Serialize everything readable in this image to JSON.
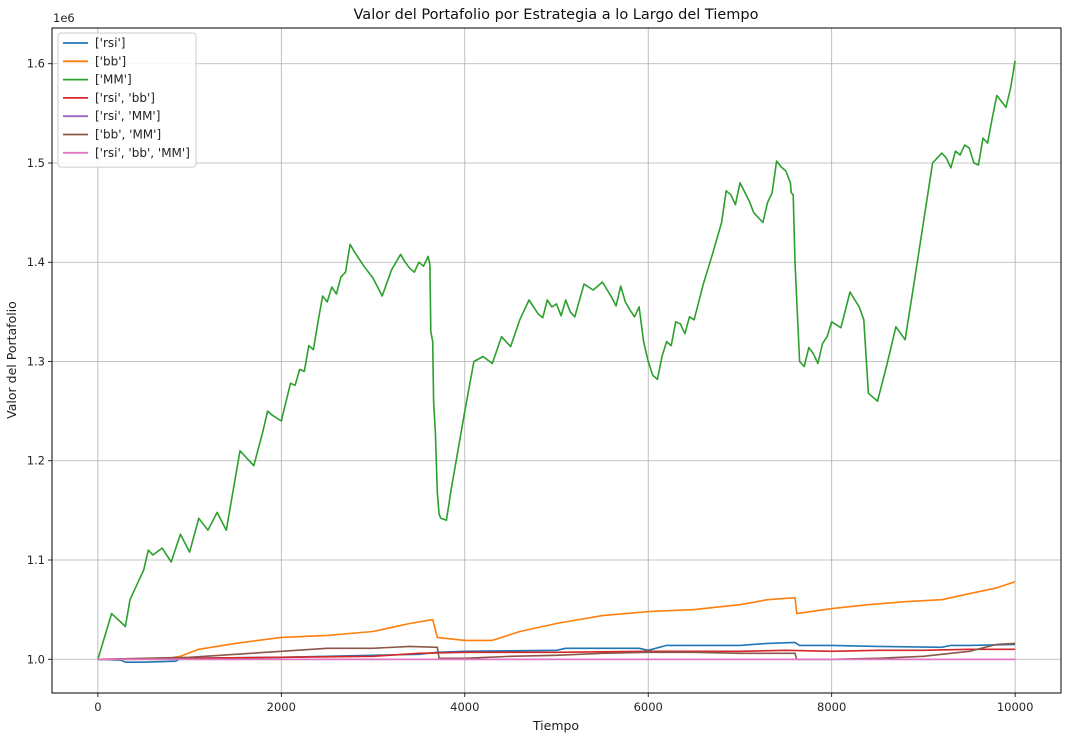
{
  "chart_data": {
    "type": "line",
    "title": "Valor del Portafolio por Estrategia a lo Largo del Tiempo",
    "xlabel": "Tiempo",
    "ylabel": "Valor del Portafolio",
    "y_offset_label": "1e6",
    "xlim": [
      -500,
      10500
    ],
    "ylim": [
      966000,
      1636000
    ],
    "x_ticks": [
      0,
      2000,
      4000,
      6000,
      8000,
      10000
    ],
    "x_tick_labels": [
      "0",
      "2000",
      "4000",
      "6000",
      "8000",
      "10000"
    ],
    "y_ticks": [
      1000000,
      1100000,
      1200000,
      1300000,
      1400000,
      1500000,
      1600000
    ],
    "y_tick_labels": [
      "1.0",
      "1.1",
      "1.2",
      "1.3",
      "1.4",
      "1.5",
      "1.6"
    ],
    "grid": true,
    "legend_position": "top-left",
    "series": [
      {
        "name": "['rsi']",
        "color": "#1f77b4",
        "x": [
          0,
          250,
          300,
          500,
          850,
          900,
          2000,
          3000,
          3500,
          3700,
          4000,
          5000,
          5100,
          5900,
          6000,
          6200,
          7000,
          7300,
          7600,
          7650,
          8000,
          8500,
          9200,
          9300,
          9500,
          10000
        ],
        "y": [
          1000000,
          999000,
          997000,
          997000,
          998000,
          1001000,
          1002000,
          1004000,
          1005000,
          1007000,
          1008000,
          1009000,
          1011000,
          1011000,
          1009000,
          1014000,
          1014000,
          1016000,
          1017000,
          1014000,
          1014000,
          1013000,
          1012000,
          1014000,
          1014000,
          1015000
        ]
      },
      {
        "name": "['bb']",
        "color": "#ff7f0e",
        "x": [
          0,
          700,
          900,
          1100,
          1500,
          2000,
          2500,
          3000,
          3400,
          3650,
          3700,
          4000,
          4300,
          4600,
          5000,
          5500,
          6000,
          6500,
          7000,
          7300,
          7600,
          7620,
          8000,
          8400,
          8800,
          9200,
          9500,
          9800,
          10000
        ],
        "y": [
          1000000,
          1000000,
          1003000,
          1010000,
          1016000,
          1022000,
          1024000,
          1028000,
          1036000,
          1040000,
          1022000,
          1019000,
          1019000,
          1028000,
          1036000,
          1044000,
          1048000,
          1050000,
          1055000,
          1060000,
          1062000,
          1046000,
          1051000,
          1055000,
          1058000,
          1060000,
          1066000,
          1072000,
          1078000
        ]
      },
      {
        "name": "['MM']",
        "color": "#2ca02c",
        "x": [
          0,
          150,
          300,
          350,
          500,
          550,
          600,
          700,
          800,
          900,
          1000,
          1100,
          1200,
          1300,
          1400,
          1550,
          1700,
          1800,
          1850,
          1900,
          2000,
          2100,
          2150,
          2200,
          2250,
          2300,
          2350,
          2400,
          2450,
          2500,
          2550,
          2600,
          2650,
          2700,
          2750,
          2800,
          2900,
          3000,
          3100,
          3200,
          3300,
          3350,
          3400,
          3450,
          3500,
          3550,
          3600,
          3620,
          3630,
          3650,
          3660,
          3680,
          3700,
          3720,
          3740,
          3800,
          3850,
          4000,
          4100,
          4200,
          4300,
          4400,
          4500,
          4600,
          4700,
          4800,
          4850,
          4900,
          4950,
          5000,
          5050,
          5100,
          5150,
          5200,
          5300,
          5400,
          5500,
          5600,
          5650,
          5700,
          5750,
          5800,
          5850,
          5900,
          5950,
          6000,
          6050,
          6100,
          6150,
          6200,
          6250,
          6300,
          6350,
          6400,
          6450,
          6500,
          6600,
          6700,
          6800,
          6850,
          6900,
          6950,
          7000,
          7100,
          7150,
          7200,
          7250,
          7300,
          7350,
          7400,
          7450,
          7500,
          7550,
          7560,
          7580,
          7600,
          7650,
          7700,
          7750,
          7800,
          7850,
          7900,
          7950,
          8000,
          8100,
          8200,
          8300,
          8350,
          8400,
          8500,
          8600,
          8700,
          8800,
          8900,
          9000,
          9100,
          9200,
          9250,
          9300,
          9350,
          9400,
          9450,
          9500,
          9550,
          9600,
          9650,
          9700,
          9750,
          9800,
          9850,
          9900,
          9950,
          10000
        ],
        "y": [
          1000000,
          1046000,
          1033000,
          1060000,
          1090000,
          1110000,
          1105000,
          1112000,
          1098000,
          1126000,
          1108000,
          1142000,
          1130000,
          1148000,
          1130000,
          1210000,
          1195000,
          1230000,
          1250000,
          1246000,
          1240000,
          1278000,
          1276000,
          1292000,
          1290000,
          1316000,
          1312000,
          1340000,
          1366000,
          1360000,
          1375000,
          1368000,
          1385000,
          1390000,
          1418000,
          1410000,
          1396000,
          1384000,
          1366000,
          1392000,
          1408000,
          1400000,
          1394000,
          1390000,
          1400000,
          1396000,
          1406000,
          1398000,
          1330000,
          1320000,
          1260000,
          1228000,
          1168000,
          1146000,
          1142000,
          1140000,
          1170000,
          1250000,
          1300000,
          1305000,
          1298000,
          1325000,
          1315000,
          1342000,
          1362000,
          1348000,
          1344000,
          1362000,
          1355000,
          1358000,
          1346000,
          1362000,
          1350000,
          1345000,
          1378000,
          1372000,
          1380000,
          1365000,
          1356000,
          1376000,
          1360000,
          1352000,
          1345000,
          1355000,
          1320000,
          1300000,
          1286000,
          1282000,
          1305000,
          1320000,
          1316000,
          1340000,
          1338000,
          1328000,
          1345000,
          1342000,
          1378000,
          1408000,
          1440000,
          1472000,
          1468000,
          1458000,
          1480000,
          1462000,
          1450000,
          1445000,
          1440000,
          1460000,
          1470000,
          1502000,
          1496000,
          1492000,
          1480000,
          1470000,
          1468000,
          1400000,
          1300000,
          1295000,
          1314000,
          1308000,
          1298000,
          1318000,
          1325000,
          1340000,
          1334000,
          1370000,
          1355000,
          1342000,
          1268000,
          1260000,
          1296000,
          1335000,
          1322000,
          1380000,
          1440000,
          1500000,
          1510000,
          1505000,
          1495000,
          1512000,
          1508000,
          1518000,
          1515000,
          1500000,
          1498000,
          1525000,
          1520000,
          1545000,
          1568000,
          1562000,
          1556000,
          1575000,
          1603000
        ]
      },
      {
        "name": "['rsi', 'bb']",
        "color": "#d62728",
        "x": [
          0,
          1000,
          2000,
          3000,
          3500,
          4000,
          5000,
          6000,
          6500,
          7000,
          7500,
          8000,
          8500,
          9000,
          9500,
          10000
        ],
        "y": [
          1000000,
          1001000,
          1002000,
          1003000,
          1006000,
          1007000,
          1007000,
          1008000,
          1008000,
          1008000,
          1009000,
          1008000,
          1009000,
          1009000,
          1010000,
          1010000
        ]
      },
      {
        "name": "['rsi', 'MM']",
        "color": "#9467bd",
        "x": [
          0,
          1000,
          2000,
          3000,
          4000,
          5000,
          6000,
          7000,
          8000,
          9000,
          10000
        ],
        "y": [
          1000000,
          1000000,
          1000000,
          1000000,
          1000000,
          1000000,
          1000000,
          1000000,
          1000000,
          1000000,
          1000000
        ]
      },
      {
        "name": "['bb', 'MM']",
        "color": "#8c564b",
        "x": [
          0,
          500,
          1000,
          1500,
          2000,
          2500,
          3000,
          3400,
          3700,
          3720,
          4000,
          4500,
          5000,
          5500,
          6000,
          6500,
          7000,
          7500,
          7600,
          7620,
          8000,
          8500,
          9000,
          9500,
          9800,
          10000
        ],
        "y": [
          1000000,
          1001000,
          1002000,
          1005000,
          1008000,
          1011000,
          1011000,
          1013000,
          1012000,
          1001000,
          1001000,
          1003000,
          1004000,
          1006000,
          1007000,
          1007000,
          1006000,
          1006000,
          1006000,
          1000000,
          1000000,
          1001000,
          1003000,
          1008000,
          1015000,
          1016000
        ]
      },
      {
        "name": "['rsi', 'bb', 'MM']",
        "color": "#e377c2",
        "x": [
          0,
          1000,
          2000,
          3000,
          4000,
          5000,
          6000,
          7000,
          8000,
          9000,
          10000
        ],
        "y": [
          1000000,
          1000000,
          1000000,
          1000000,
          1000000,
          1000000,
          1000000,
          1000000,
          1000000,
          1000000,
          1000000
        ]
      }
    ]
  }
}
